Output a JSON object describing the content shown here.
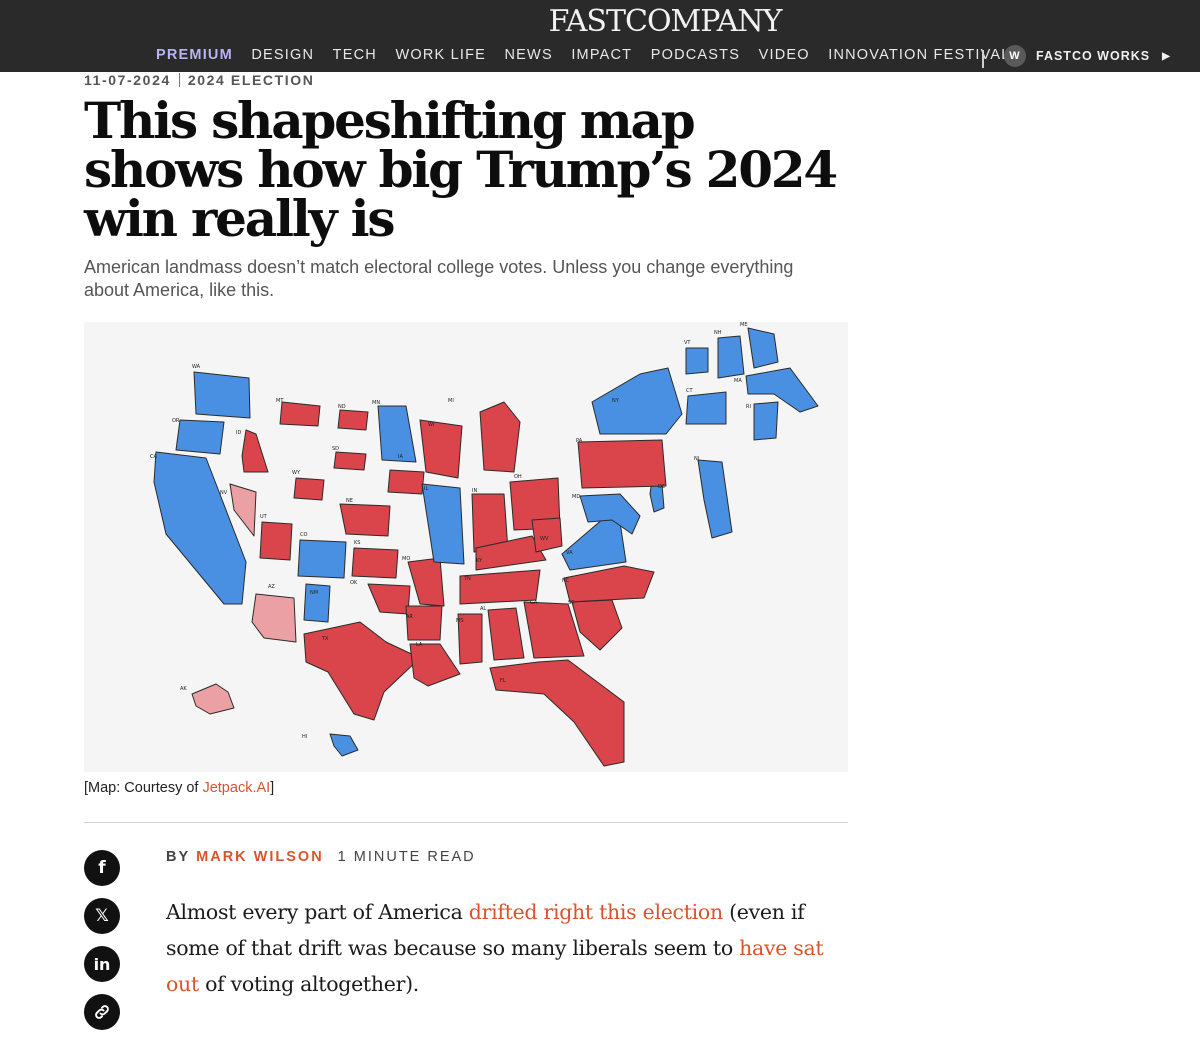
{
  "header": {
    "logo": "FASTCOMPANY",
    "nav": [
      "PREMIUM",
      "DESIGN",
      "TECH",
      "WORK LIFE",
      "NEWS",
      "IMPACT",
      "PODCASTS",
      "VIDEO",
      "INNOVATION FESTIVAL"
    ],
    "works_badge": "W",
    "works_label": "FASTCO WORKS",
    "works_arrow": "▶"
  },
  "article": {
    "date": "11-07-2024",
    "category": "2024 ELECTION",
    "headline": "This shapeshifting map shows how big Trump’s 2024 win really is",
    "dek": "American landmass doesn’t match electoral college votes. Unless you change everything about America, like this.",
    "caption_prefix": "[Map: Courtesy of ",
    "caption_link": "Jetpack.AI",
    "caption_suffix": "]",
    "byline_by": "BY",
    "author": "MARK WILSON",
    "read_time": "1 MINUTE READ",
    "body": {
      "part1": "Almost every part of America ",
      "link1": "drifted right this election",
      "part2": " (even if some of that drift was because so many liberals seem to ",
      "link2": "have sat out",
      "part3": " of voting altogether)."
    }
  },
  "share": [
    {
      "icon": "facebook-icon",
      "glyph": "f"
    },
    {
      "icon": "x-icon",
      "glyph": "𝕏"
    },
    {
      "icon": "linkedin-icon",
      "glyph": "in"
    },
    {
      "icon": "link-icon",
      "glyph": "🔗"
    }
  ],
  "colors": {
    "republican": "#d9454a",
    "democrat": "#4a90e2",
    "lean_republican": "#eba1a3",
    "accent": "#d9542c",
    "premium": "#b8b4f5"
  },
  "map": {
    "states": [
      {
        "abbr": "WA",
        "winner": "dem"
      },
      {
        "abbr": "OR",
        "winner": "dem"
      },
      {
        "abbr": "CA",
        "winner": "dem"
      },
      {
        "abbr": "ID",
        "winner": "rep"
      },
      {
        "abbr": "NV",
        "winner": "lean_rep"
      },
      {
        "abbr": "MT",
        "winner": "rep"
      },
      {
        "abbr": "WY",
        "winner": "rep"
      },
      {
        "abbr": "UT",
        "winner": "rep"
      },
      {
        "abbr": "CO",
        "winner": "dem"
      },
      {
        "abbr": "AZ",
        "winner": "lean_rep"
      },
      {
        "abbr": "NM",
        "winner": "dem"
      },
      {
        "abbr": "ND",
        "winner": "rep"
      },
      {
        "abbr": "SD",
        "winner": "rep"
      },
      {
        "abbr": "NE",
        "winner": "rep"
      },
      {
        "abbr": "KS",
        "winner": "rep"
      },
      {
        "abbr": "OK",
        "winner": "rep"
      },
      {
        "abbr": "TX",
        "winner": "rep"
      },
      {
        "abbr": "MN",
        "winner": "dem"
      },
      {
        "abbr": "IA",
        "winner": "rep"
      },
      {
        "abbr": "MO",
        "winner": "rep"
      },
      {
        "abbr": "AR",
        "winner": "rep"
      },
      {
        "abbr": "LA",
        "winner": "rep"
      },
      {
        "abbr": "WI",
        "winner": "rep"
      },
      {
        "abbr": "IL",
        "winner": "dem"
      },
      {
        "abbr": "MI",
        "winner": "rep"
      },
      {
        "abbr": "IN",
        "winner": "rep"
      },
      {
        "abbr": "OH",
        "winner": "rep"
      },
      {
        "abbr": "KY",
        "winner": "rep"
      },
      {
        "abbr": "TN",
        "winner": "rep"
      },
      {
        "abbr": "MS",
        "winner": "rep"
      },
      {
        "abbr": "AL",
        "winner": "rep"
      },
      {
        "abbr": "GA",
        "winner": "rep"
      },
      {
        "abbr": "FL",
        "winner": "rep"
      },
      {
        "abbr": "SC",
        "winner": "rep"
      },
      {
        "abbr": "NC",
        "winner": "rep"
      },
      {
        "abbr": "VA",
        "winner": "dem"
      },
      {
        "abbr": "WV",
        "winner": "rep"
      },
      {
        "abbr": "MD",
        "winner": "dem"
      },
      {
        "abbr": "DE",
        "winner": "dem"
      },
      {
        "abbr": "PA",
        "winner": "rep"
      },
      {
        "abbr": "NJ",
        "winner": "dem"
      },
      {
        "abbr": "NY",
        "winner": "dem"
      },
      {
        "abbr": "CT",
        "winner": "dem"
      },
      {
        "abbr": "RI",
        "winner": "dem"
      },
      {
        "abbr": "MA",
        "winner": "dem"
      },
      {
        "abbr": "VT",
        "winner": "dem"
      },
      {
        "abbr": "NH",
        "winner": "dem"
      },
      {
        "abbr": "ME",
        "winner": "dem"
      },
      {
        "abbr": "AK",
        "winner": "lean_rep"
      },
      {
        "abbr": "HI",
        "winner": "dem"
      }
    ]
  }
}
